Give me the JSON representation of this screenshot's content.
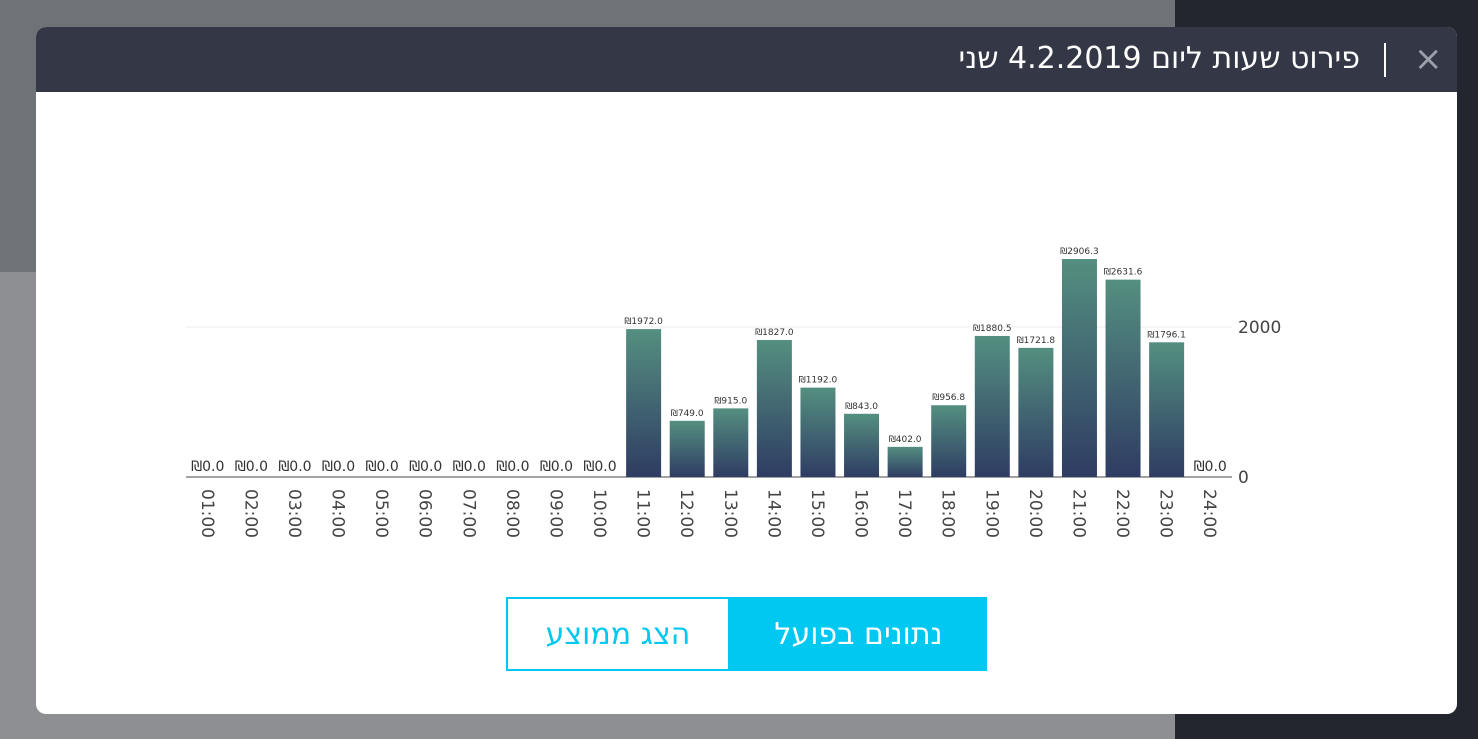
{
  "modal": {
    "title": "פירוט שעות ליום 4.2.2019 שני",
    "close": "×",
    "buttons": [
      "נתונים בפועל",
      "הצג ממוצע"
    ]
  },
  "chart_data": {
    "type": "bar",
    "categories": [
      "01:00",
      "02:00",
      "03:00",
      "04:00",
      "05:00",
      "06:00",
      "07:00",
      "08:00",
      "09:00",
      "10:00",
      "11:00",
      "12:00",
      "13:00",
      "14:00",
      "15:00",
      "16:00",
      "17:00",
      "18:00",
      "19:00",
      "20:00",
      "21:00",
      "22:00",
      "23:00",
      "24:00"
    ],
    "values": [
      0,
      0,
      0,
      0,
      0,
      0,
      0,
      0,
      0,
      0,
      1972,
      749,
      915,
      1827,
      1192,
      843,
      402,
      956.8,
      1880.5,
      1721.8,
      2906.3,
      2631.6,
      1796.1,
      0
    ],
    "value_labels": [
      "₪0.0",
      "₪0.0",
      "₪0.0",
      "₪0.0",
      "₪0.0",
      "₪0.0",
      "₪0.0",
      "₪0.0",
      "₪0.0",
      "₪0.0",
      "₪1972.0",
      "₪749.0",
      "₪915.0",
      "₪1827.0",
      "₪1192.0",
      "₪843.0",
      "₪402.0",
      "₪956.8",
      "₪1880.5",
      "₪1721.8",
      "₪2906.3",
      "₪2631.6",
      "₪1796.1",
      "₪0.0"
    ],
    "gradient": [
      "#548f80",
      "#2f3c63"
    ],
    "ylim": [
      0,
      3000
    ],
    "yticks": [
      0,
      2000
    ],
    "grid": true
  }
}
